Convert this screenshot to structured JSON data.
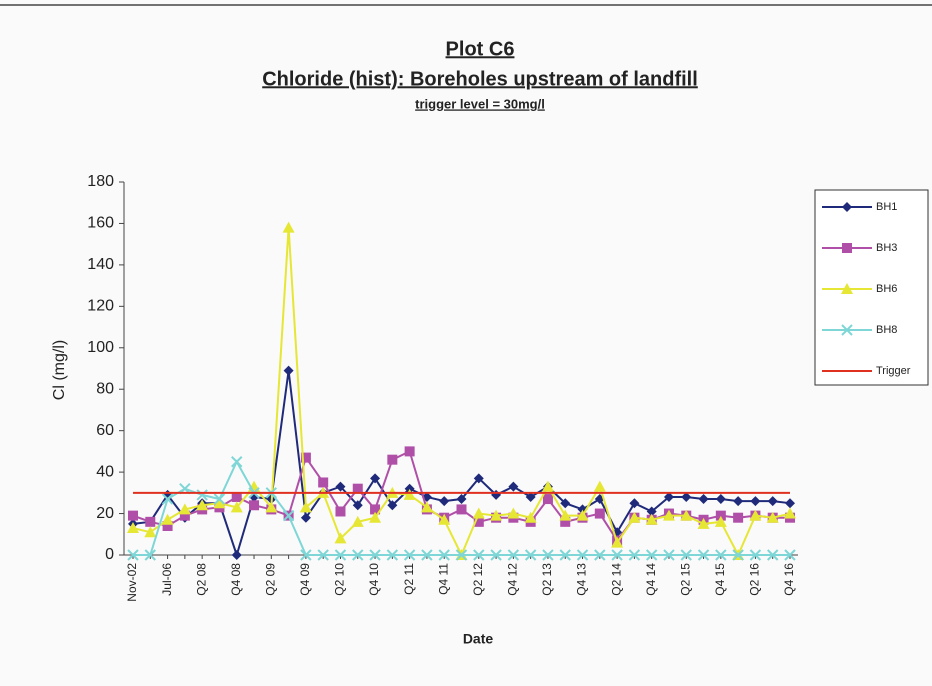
{
  "chart_data": {
    "type": "line",
    "title": "Plot C6",
    "subtitle": "Chloride (hist): Boreholes upstream of landfill",
    "annotation": "trigger level = 30mg/l",
    "x_label": "Date",
    "y_label": "Cl (mg/l)",
    "categories": [
      "Nov-02",
      null,
      "Jul-06",
      null,
      "Q2 08",
      null,
      "Q4 08",
      null,
      "Q2 09",
      null,
      "Q4 09",
      null,
      "Q2 10",
      null,
      "Q4 10",
      null,
      "Q2 11",
      null,
      "Q4 11",
      null,
      "Q2 12",
      null,
      "Q4 12",
      null,
      "Q2 13",
      null,
      "Q4 13",
      null,
      "Q2 14",
      null,
      "Q4 14",
      null,
      "Q2 15",
      null,
      "Q4 15",
      null,
      "Q2 16",
      null,
      "Q4 16"
    ],
    "ylim": [
      0,
      180
    ],
    "yticks": [
      0,
      20,
      40,
      60,
      80,
      100,
      120,
      140,
      160,
      180
    ],
    "legend": "right",
    "series": [
      {
        "name": "BH1",
        "color": "#1f2a7a",
        "marker": "diamond",
        "values": [
          15,
          16,
          29,
          18,
          25,
          25,
          0,
          28,
          27,
          89,
          18,
          30,
          33,
          24,
          37,
          24,
          32,
          28,
          26,
          27,
          37,
          29,
          33,
          28,
          33,
          25,
          22,
          27,
          11,
          25,
          21,
          28,
          28,
          27,
          27,
          26,
          26,
          26,
          25
        ]
      },
      {
        "name": "BH3",
        "color": "#b04fa8",
        "marker": "square",
        "values": [
          19,
          16,
          14,
          19,
          22,
          23,
          28,
          24,
          22,
          19,
          47,
          35,
          21,
          32,
          22,
          46,
          50,
          22,
          18,
          22,
          16,
          18,
          18,
          16,
          27,
          16,
          18,
          20,
          7,
          18,
          17,
          20,
          19,
          17,
          19,
          18,
          19,
          18,
          18
        ]
      },
      {
        "name": "BH6",
        "color": "#e6e635",
        "marker": "triangle",
        "values": [
          13,
          11,
          17,
          22,
          24,
          25,
          23,
          33,
          23,
          158,
          23,
          30,
          8,
          16,
          18,
          30,
          29,
          23,
          17,
          0,
          20,
          19,
          20,
          18,
          33,
          19,
          19,
          33,
          6,
          18,
          17,
          19,
          19,
          15,
          16,
          0,
          19,
          18,
          20
        ]
      },
      {
        "name": "BH8",
        "color": "#7fd6d6",
        "marker": "x",
        "values": [
          0,
          0,
          27,
          32,
          29,
          27,
          45,
          30,
          30,
          19,
          0,
          0,
          0,
          0,
          0,
          0,
          0,
          0,
          0,
          0,
          0,
          0,
          0,
          0,
          0,
          0,
          0,
          0,
          0,
          0,
          0,
          0,
          0,
          0,
          0,
          0,
          0,
          0,
          0
        ]
      },
      {
        "name": "Trigger",
        "color": "#e03020",
        "marker": "none",
        "values": [
          30,
          30,
          30,
          30,
          30,
          30,
          30,
          30,
          30,
          30,
          30,
          30,
          30,
          30,
          30,
          30,
          30,
          30,
          30,
          30,
          30,
          30,
          30,
          30,
          30,
          30,
          30,
          30,
          30,
          30,
          30,
          30,
          30,
          30,
          30,
          30,
          30,
          30,
          30
        ]
      }
    ]
  }
}
